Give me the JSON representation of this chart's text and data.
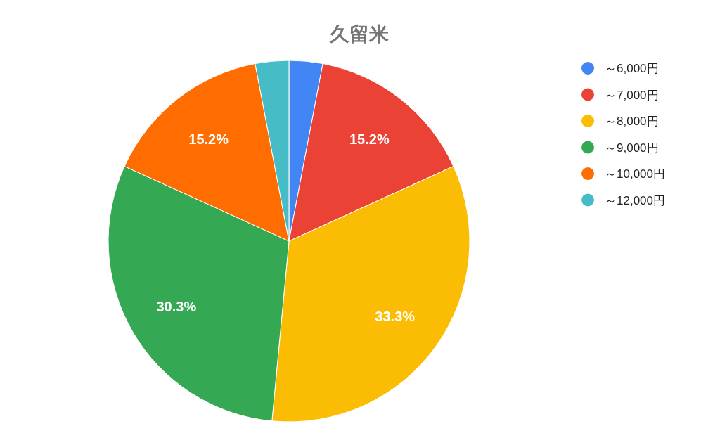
{
  "chart_data": {
    "type": "pie",
    "title": "久留米",
    "categories": [
      "～6,000円",
      "～7,000円",
      "～8,000円",
      "～9,000円",
      "～10,000円",
      "～12,000円"
    ],
    "values": [
      3.0,
      15.2,
      33.3,
      30.3,
      15.2,
      3.0
    ],
    "colors": [
      "#4285f4",
      "#ea4335",
      "#fbbc04",
      "#34a853",
      "#ff6d01",
      "#46bdc6"
    ],
    "value_labels": [
      null,
      "15.2%",
      "33.3%",
      "30.3%",
      "15.2%",
      null
    ],
    "legend": "top right"
  }
}
